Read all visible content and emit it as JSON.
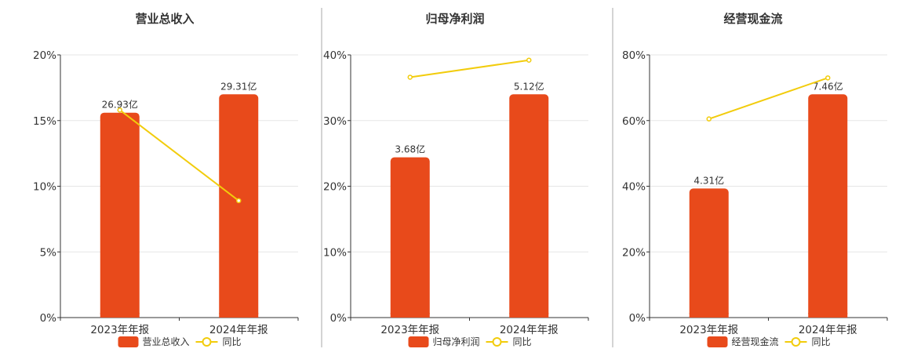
{
  "colors": {
    "bar": "#e84a1b",
    "line": "#f2cc0c",
    "axis": "#333333",
    "grid": "#e6e6e6",
    "divider": "#aaaaaa"
  },
  "legend_line_label": "同比",
  "chart_data": [
    {
      "type": "bar",
      "title": "营业总收入",
      "legend_bar_label": "营业总收入",
      "categories": [
        "2023年年报",
        "2024年年报"
      ],
      "yticks": [
        "0%",
        "5%",
        "10%",
        "15%",
        "20%"
      ],
      "ylim": [
        0,
        20
      ],
      "series": [
        {
          "values": [
            15.6,
            17.0
          ],
          "labels": [
            "26.93亿",
            "29.31亿"
          ]
        },
        {
          "values": [
            15.8,
            8.9
          ]
        }
      ]
    },
    {
      "type": "bar",
      "title": "归母净利润",
      "legend_bar_label": "归母净利润",
      "categories": [
        "2023年年报",
        "2024年年报"
      ],
      "yticks": [
        "0%",
        "10%",
        "20%",
        "30%",
        "40%"
      ],
      "ylim": [
        0,
        40
      ],
      "series": [
        {
          "values": [
            24.4,
            34.0
          ],
          "labels": [
            "3.68亿",
            "5.12亿"
          ]
        },
        {
          "values": [
            36.6,
            39.2
          ]
        }
      ]
    },
    {
      "type": "bar",
      "title": "经营现金流",
      "legend_bar_label": "经营现金流",
      "categories": [
        "2023年年报",
        "2024年年报"
      ],
      "yticks": [
        "0%",
        "20%",
        "40%",
        "60%",
        "80%"
      ],
      "ylim": [
        0,
        80
      ],
      "series": [
        {
          "values": [
            39.3,
            68.0
          ],
          "labels": [
            "4.31亿",
            "7.46亿"
          ]
        },
        {
          "values": [
            60.5,
            73.0
          ]
        }
      ]
    }
  ]
}
